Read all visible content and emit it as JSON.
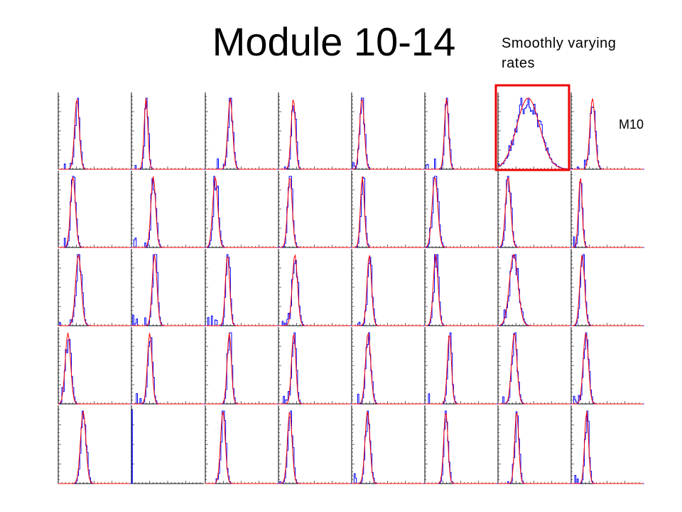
{
  "header": {
    "title": "Module 10-14",
    "note": "Smoothly varying rates"
  },
  "panel_label": "M10"
}
